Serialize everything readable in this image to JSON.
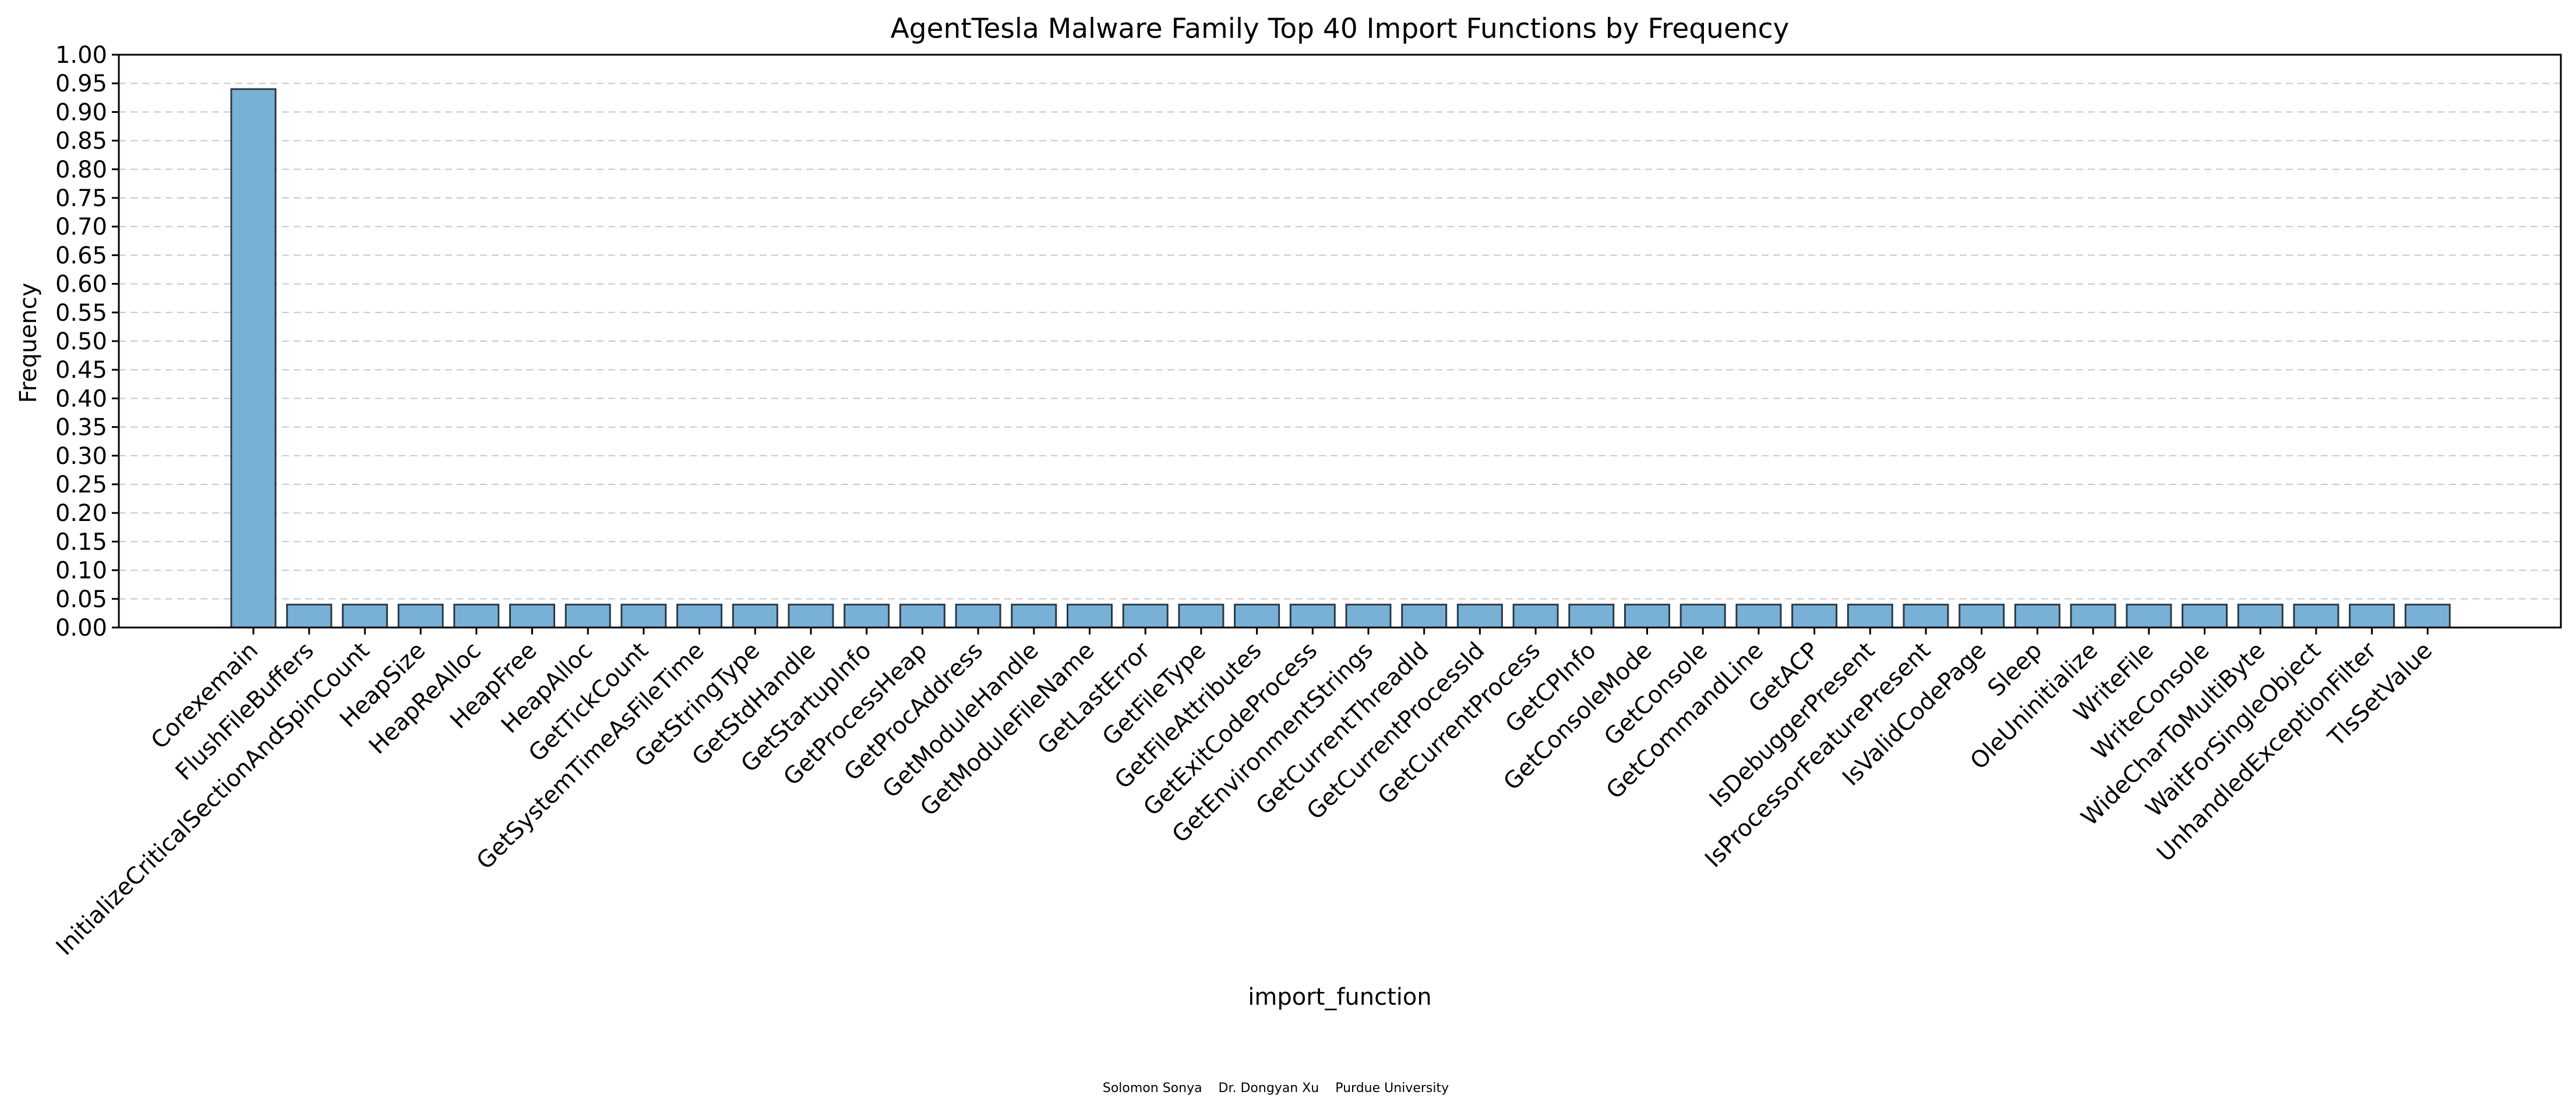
{
  "chart_data": {
    "type": "bar",
    "title": "AgentTesla Malware Family Top 40 Import Functions by Frequency",
    "xlabel": "import_function",
    "ylabel": "Frequency",
    "ylim": [
      0,
      1.0
    ],
    "yticks": [
      "0.00",
      "0.05",
      "0.10",
      "0.15",
      "0.20",
      "0.25",
      "0.30",
      "0.35",
      "0.40",
      "0.45",
      "0.50",
      "0.55",
      "0.60",
      "0.65",
      "0.70",
      "0.75",
      "0.80",
      "0.85",
      "0.90",
      "0.95",
      "1.00"
    ],
    "grid": "horizontal dashed",
    "bar_color": "#79b0d6",
    "edge_color": "#2b3a48",
    "categories": [
      "Corexemain",
      "FlushFileBuffers",
      "InitializeCriticalSectionAndSpinCount",
      "HeapSize",
      "HeapReAlloc",
      "HeapFree",
      "HeapAlloc",
      "GetTickCount",
      "GetSystemTimeAsFileTime",
      "GetStringType",
      "GetStdHandle",
      "GetStartupInfo",
      "GetProcessHeap",
      "GetProcAddress",
      "GetModuleHandle",
      "GetModuleFileName",
      "GetLastError",
      "GetFileType",
      "GetFileAttributes",
      "GetExitCodeProcess",
      "GetEnvironmentStrings",
      "GetCurrentThreadId",
      "GetCurrentProcessId",
      "GetCurrentProcess",
      "GetCPInfo",
      "GetConsoleMode",
      "GetConsole",
      "GetCommandLine",
      "GetACP",
      "IsDebuggerPresent",
      "IsProcessorFeaturePresent",
      "IsValidCodePage",
      "Sleep",
      "OleUninitialize",
      "WriteFile",
      "WriteConsole",
      "WideCharToMultiByte",
      "WaitForSingleObject",
      "UnhandledExceptionFilter",
      "TlsSetValue"
    ],
    "values": [
      0.94,
      0.04,
      0.04,
      0.04,
      0.04,
      0.04,
      0.04,
      0.04,
      0.04,
      0.04,
      0.04,
      0.04,
      0.04,
      0.04,
      0.04,
      0.04,
      0.04,
      0.04,
      0.04,
      0.04,
      0.04,
      0.04,
      0.04,
      0.04,
      0.04,
      0.04,
      0.04,
      0.04,
      0.04,
      0.04,
      0.04,
      0.04,
      0.04,
      0.04,
      0.04,
      0.04,
      0.04,
      0.04,
      0.04,
      0.04
    ]
  },
  "credits": "Solomon Sonya    Dr. Dongyan Xu    Purdue University"
}
